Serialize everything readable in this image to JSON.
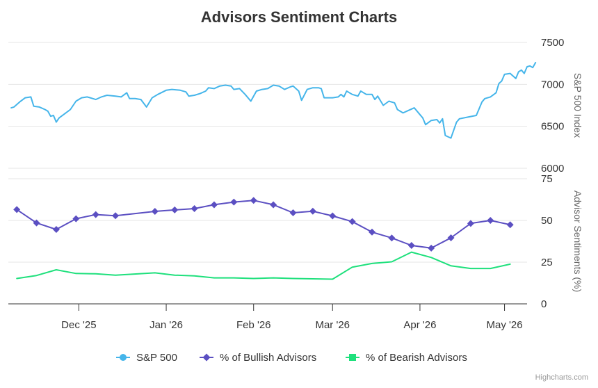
{
  "chart_data": {
    "type": "line",
    "title": "Advisors Sentiment Charts",
    "x_tick_labels": [
      "Dec '25",
      "Jan '26",
      "Feb '26",
      "Mar '26",
      "Apr '26",
      "May '26"
    ],
    "x_range": [
      "2025-11-06",
      "2026-05-09"
    ],
    "x_ticks": [
      "2025-12-01",
      "2026-01-01",
      "2026-02-01",
      "2026-03-01",
      "2026-04-01",
      "2026-05-01"
    ],
    "panels": [
      {
        "name": "sp500",
        "ylabel": "S&P 500 Index",
        "ylim": [
          6000,
          7500
        ],
        "y_ticks": [
          6000,
          6500,
          7000,
          7500
        ],
        "y_axis_side": "right"
      },
      {
        "name": "sentiment",
        "ylabel": "Advisor Sentiments (%)",
        "ylim": [
          0,
          75
        ],
        "y_ticks": [
          0,
          25,
          50,
          75
        ],
        "y_axis_side": "right"
      }
    ],
    "series": [
      {
        "name": "S&P 500",
        "panel": "sp500",
        "color": "#45b5ea",
        "marker": "none",
        "legend_marker": "circle",
        "points": [
          [
            "2025-11-07",
            6720
          ],
          [
            "2025-11-08",
            6730
          ],
          [
            "2025-11-10",
            6790
          ],
          [
            "2025-11-12",
            6840
          ],
          [
            "2025-11-14",
            6850
          ],
          [
            "2025-11-15",
            6740
          ],
          [
            "2025-11-17",
            6730
          ],
          [
            "2025-11-19",
            6700
          ],
          [
            "2025-11-20",
            6680
          ],
          [
            "2025-11-21",
            6620
          ],
          [
            "2025-11-22",
            6630
          ],
          [
            "2025-11-23",
            6550
          ],
          [
            "2025-11-24",
            6600
          ],
          [
            "2025-11-26",
            6650
          ],
          [
            "2025-11-28",
            6700
          ],
          [
            "2025-11-30",
            6800
          ],
          [
            "2025-12-02",
            6840
          ],
          [
            "2025-12-04",
            6850
          ],
          [
            "2025-12-07",
            6820
          ],
          [
            "2025-12-09",
            6850
          ],
          [
            "2025-12-11",
            6870
          ],
          [
            "2025-12-14",
            6860
          ],
          [
            "2025-12-16",
            6850
          ],
          [
            "2025-12-18",
            6900
          ],
          [
            "2025-12-19",
            6830
          ],
          [
            "2025-12-21",
            6830
          ],
          [
            "2025-12-23",
            6820
          ],
          [
            "2025-12-25",
            6730
          ],
          [
            "2025-12-27",
            6840
          ],
          [
            "2025-12-29",
            6880
          ],
          [
            "2026-01-01",
            6930
          ],
          [
            "2026-01-03",
            6940
          ],
          [
            "2026-01-06",
            6930
          ],
          [
            "2026-01-08",
            6910
          ],
          [
            "2026-01-09",
            6860
          ],
          [
            "2026-01-11",
            6870
          ],
          [
            "2026-01-13",
            6890
          ],
          [
            "2026-01-15",
            6920
          ],
          [
            "2026-01-16",
            6960
          ],
          [
            "2026-01-18",
            6950
          ],
          [
            "2026-01-20",
            6980
          ],
          [
            "2026-01-22",
            6990
          ],
          [
            "2026-01-24",
            6980
          ],
          [
            "2026-01-25",
            6940
          ],
          [
            "2026-01-27",
            6950
          ],
          [
            "2026-01-29",
            6880
          ],
          [
            "2026-01-31",
            6800
          ],
          [
            "2026-02-02",
            6920
          ],
          [
            "2026-02-04",
            6940
          ],
          [
            "2026-02-06",
            6950
          ],
          [
            "2026-02-08",
            6990
          ],
          [
            "2026-02-10",
            6980
          ],
          [
            "2026-02-12",
            6940
          ],
          [
            "2026-02-14",
            6970
          ],
          [
            "2026-02-15",
            6980
          ],
          [
            "2026-02-17",
            6920
          ],
          [
            "2026-02-18",
            6810
          ],
          [
            "2026-02-20",
            6940
          ],
          [
            "2026-02-22",
            6960
          ],
          [
            "2026-02-24",
            6960
          ],
          [
            "2026-02-25",
            6950
          ],
          [
            "2026-02-26",
            6840
          ],
          [
            "2026-03-01",
            6840
          ],
          [
            "2026-03-03",
            6850
          ],
          [
            "2026-03-04",
            6880
          ],
          [
            "2026-03-05",
            6850
          ],
          [
            "2026-03-06",
            6920
          ],
          [
            "2026-03-08",
            6880
          ],
          [
            "2026-03-10",
            6860
          ],
          [
            "2026-03-11",
            6920
          ],
          [
            "2026-03-13",
            6880
          ],
          [
            "2026-03-15",
            6880
          ],
          [
            "2026-03-16",
            6820
          ],
          [
            "2026-03-17",
            6860
          ],
          [
            "2026-03-19",
            6750
          ],
          [
            "2026-03-21",
            6800
          ],
          [
            "2026-03-23",
            6780
          ],
          [
            "2026-03-24",
            6700
          ],
          [
            "2026-03-26",
            6660
          ],
          [
            "2026-03-28",
            6690
          ],
          [
            "2026-03-30",
            6720
          ],
          [
            "2026-04-01",
            6640
          ],
          [
            "2026-04-02",
            6600
          ],
          [
            "2026-04-03",
            6520
          ],
          [
            "2026-04-05",
            6570
          ],
          [
            "2026-04-07",
            6580
          ],
          [
            "2026-04-08",
            6540
          ],
          [
            "2026-04-09",
            6590
          ],
          [
            "2026-04-10",
            6390
          ],
          [
            "2026-04-12",
            6360
          ],
          [
            "2026-04-14",
            6550
          ],
          [
            "2026-04-15",
            6590
          ],
          [
            "2026-04-18",
            6610
          ],
          [
            "2026-04-21",
            6630
          ],
          [
            "2026-04-23",
            6790
          ],
          [
            "2026-04-24",
            6830
          ],
          [
            "2026-04-26",
            6850
          ],
          [
            "2026-04-28",
            6900
          ],
          [
            "2026-04-29",
            7010
          ],
          [
            "2026-04-30",
            7040
          ],
          [
            "2026-05-01",
            7120
          ],
          [
            "2026-05-03",
            7130
          ],
          [
            "2026-05-05",
            7070
          ],
          [
            "2026-05-06",
            7150
          ],
          [
            "2026-05-07",
            7170
          ],
          [
            "2026-05-08",
            7130
          ],
          [
            "2026-05-09",
            7210
          ],
          [
            "2026-05-10",
            7220
          ],
          [
            "2026-05-11",
            7200
          ],
          [
            "2026-05-12",
            7260
          ]
        ]
      },
      {
        "name": "% of Bullish Advisors",
        "panel": "sentiment",
        "color": "#5b4fc2",
        "marker": "diamond",
        "legend_marker": "diamond",
        "points": [
          [
            "2025-11-09",
            56.5
          ],
          [
            "2025-11-16",
            48.5
          ],
          [
            "2025-11-23",
            44.6
          ],
          [
            "2025-11-30",
            51.0
          ],
          [
            "2025-12-07",
            53.5
          ],
          [
            "2025-12-14",
            52.8
          ],
          [
            "2025-12-28",
            55.4
          ],
          [
            "2026-01-04",
            56.3
          ],
          [
            "2026-01-11",
            57.1
          ],
          [
            "2026-01-18",
            59.4
          ],
          [
            "2026-01-25",
            61.0
          ],
          [
            "2026-02-01",
            62.0
          ],
          [
            "2026-02-08",
            59.4
          ],
          [
            "2026-02-15",
            54.6
          ],
          [
            "2026-02-22",
            55.5
          ],
          [
            "2026-03-01",
            52.7
          ],
          [
            "2026-03-08",
            49.3
          ],
          [
            "2026-03-15",
            43.0
          ],
          [
            "2026-03-22",
            39.5
          ],
          [
            "2026-03-29",
            35.0
          ],
          [
            "2026-04-05",
            33.4
          ],
          [
            "2026-04-12",
            39.6
          ],
          [
            "2026-04-19",
            48.2
          ],
          [
            "2026-04-26",
            50.0
          ],
          [
            "2026-05-03",
            47.4
          ]
        ]
      },
      {
        "name": "% of Bearish Advisors",
        "panel": "sentiment",
        "color": "#1ee07c",
        "marker": "none",
        "legend_marker": "square",
        "points": [
          [
            "2025-11-09",
            15.2
          ],
          [
            "2025-11-16",
            17.0
          ],
          [
            "2025-11-23",
            20.4
          ],
          [
            "2025-11-30",
            18.2
          ],
          [
            "2025-12-07",
            18.0
          ],
          [
            "2025-12-14",
            17.2
          ],
          [
            "2025-12-28",
            18.6
          ],
          [
            "2026-01-04",
            17.2
          ],
          [
            "2026-01-11",
            16.8
          ],
          [
            "2026-01-18",
            15.6
          ],
          [
            "2026-01-25",
            15.6
          ],
          [
            "2026-02-01",
            15.2
          ],
          [
            "2026-02-08",
            15.6
          ],
          [
            "2026-02-15",
            15.2
          ],
          [
            "2026-02-22",
            15.0
          ],
          [
            "2026-03-01",
            14.8
          ],
          [
            "2026-03-08",
            22.0
          ],
          [
            "2026-03-15",
            24.2
          ],
          [
            "2026-03-22",
            25.2
          ],
          [
            "2026-03-29",
            31.0
          ],
          [
            "2026-04-05",
            27.8
          ],
          [
            "2026-04-12",
            22.8
          ],
          [
            "2026-04-19",
            21.2
          ],
          [
            "2026-04-26",
            21.2
          ],
          [
            "2026-05-03",
            23.8
          ]
        ]
      }
    ],
    "legend": [
      "S&P 500",
      "% of Bullish Advisors",
      "% of Bearish Advisors"
    ],
    "legend_position": "bottom",
    "grid": true,
    "credit": "Highcharts.com"
  }
}
